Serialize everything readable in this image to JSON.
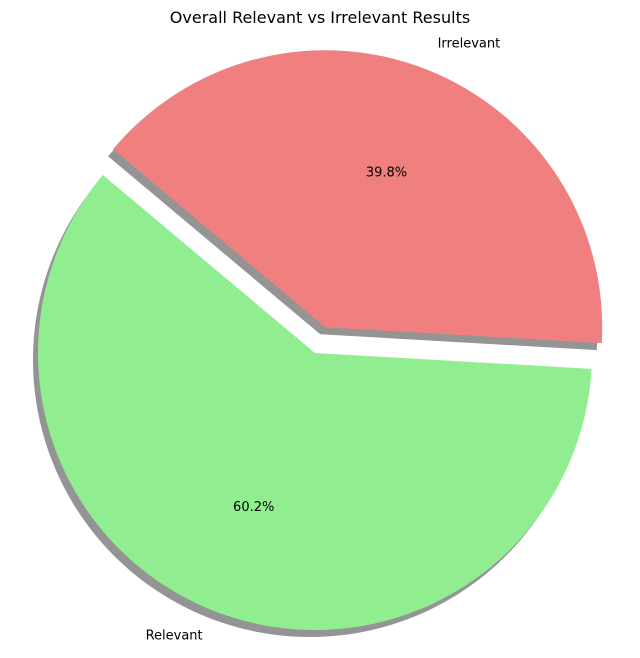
{
  "chart_data": {
    "type": "pie",
    "title": "Overall Relevant vs Irrelevant Results",
    "slices": [
      {
        "label": "Relevant",
        "value": 60.2,
        "pct_label": "60.2%",
        "color": "#90EE90",
        "explode": false
      },
      {
        "label": "Irrelevant",
        "value": 39.8,
        "pct_label": "39.8%",
        "color": "#F08080",
        "explode": true
      }
    ],
    "shadow": true
  }
}
